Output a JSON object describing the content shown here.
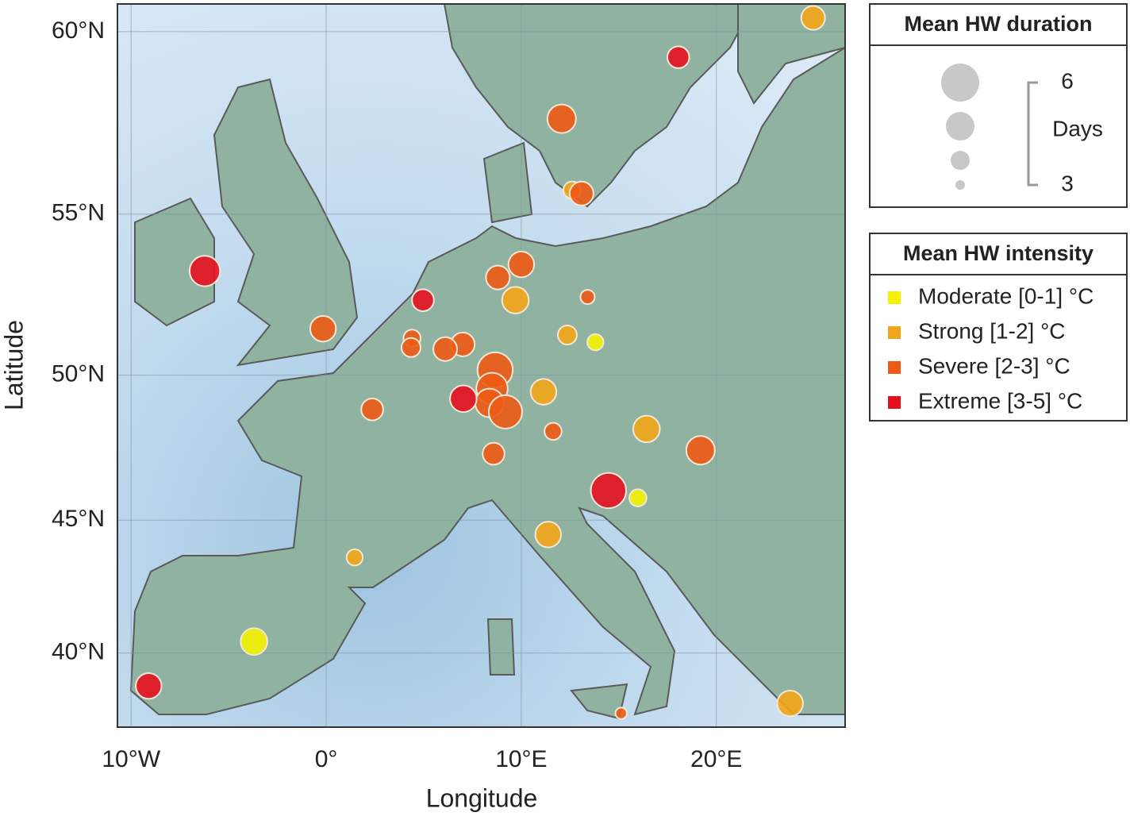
{
  "chart_data": {
    "type": "bubble",
    "projection": "mercator",
    "xlabel": "Longitude",
    "ylabel": "Latitude",
    "xlim": [
      -10.7,
      26.6
    ],
    "ylim": [
      37.04,
      60.7
    ],
    "xticks": [
      {
        "value": -10,
        "label": "10°W"
      },
      {
        "value": 0,
        "label": "0°"
      },
      {
        "value": 10,
        "label": "10°E"
      },
      {
        "value": 20,
        "label": "20°E"
      }
    ],
    "yticks": [
      {
        "value": 40,
        "label": "40°N"
      },
      {
        "value": 45,
        "label": "45°N"
      },
      {
        "value": 50,
        "label": "50°N"
      },
      {
        "value": 55,
        "label": "55°N"
      },
      {
        "value": 60,
        "label": "60°N"
      }
    ],
    "grid": true,
    "size_legend": {
      "title": "Mean HW duration",
      "unit": "Days",
      "sizes": [
        6,
        5,
        4,
        3
      ]
    },
    "color_legend_title": "Mean HW intensity",
    "series": [
      {
        "name": "Moderate [0-1] °C",
        "color": "#f5f200",
        "x": [
          13.8,
          15.98,
          -3.7
        ],
        "y": [
          51.07,
          45.8,
          40.45
        ],
        "sizes": [
          3.7,
          3.8,
          4.8
        ]
      },
      {
        "name": "Strong [1-2] °C",
        "color": "#f2a516",
        "x": [
          24.96,
          12.6,
          9.7,
          12.36,
          11.14,
          16.42,
          11.38,
          1.46,
          23.78
        ],
        "y": [
          60.35,
          55.7,
          52.4,
          51.3,
          49.45,
          48.2,
          44.48,
          43.64,
          38.0
        ],
        "sizes": [
          4.5,
          3.8,
          4.8,
          4,
          4.7,
          4.8,
          4.7,
          3.7,
          4.7
        ]
      },
      {
        "name": "Severe [2-3] °C",
        "color": "#ee5a14",
        "x": [
          12.07,
          13.09,
          10.0,
          8.8,
          13.4,
          -0.16,
          4.4,
          4.35,
          7.0,
          6.1,
          8.66,
          8.5,
          8.37,
          9.19,
          2.36,
          11.63,
          19.19,
          8.58,
          15.12
        ],
        "y": [
          57.7,
          55.6,
          53.5,
          53.1,
          52.5,
          51.5,
          51.2,
          50.9,
          51.0,
          50.85,
          50.17,
          49.56,
          49.08,
          48.78,
          48.86,
          48.12,
          47.47,
          47.35,
          37.6
        ],
        "sizes": [
          5,
          4.5,
          4.7,
          4.5,
          3.5,
          4.7,
          3.8,
          4,
          4.5,
          4.5,
          5.7,
          5.3,
          5,
          5.5,
          4.3,
          3.8,
          5,
          4.3,
          3.2
        ]
      },
      {
        "name": "Extreme [3-5] °C",
        "color": "#e5101e",
        "x": [
          18.05,
          -6.22,
          4.96,
          7.03,
          14.47,
          -9.1
        ],
        "y": [
          59.34,
          53.3,
          52.4,
          49.22,
          46.06,
          38.7
        ],
        "sizes": [
          4.3,
          5.2,
          4.3,
          4.8,
          5.7,
          4.7
        ]
      }
    ]
  }
}
